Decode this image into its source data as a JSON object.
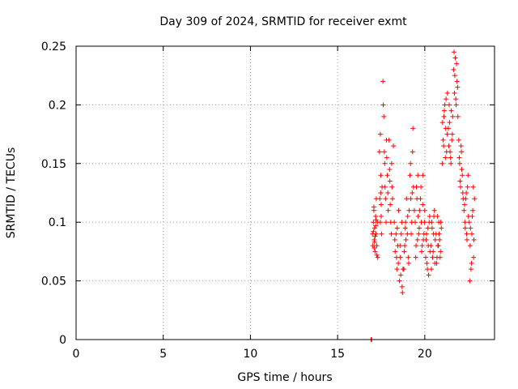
{
  "chart_data": {
    "type": "scatter",
    "title": "Day 309 of 2024, SRMTID for receiver exmt",
    "xlabel": "GPS time / hours",
    "ylabel": "SRMTID / TECUs",
    "xlim": [
      0,
      24
    ],
    "ylim": [
      0,
      0.25
    ],
    "xticks": [
      0,
      5,
      10,
      15,
      20
    ],
    "xtick_labels": [
      "0",
      "5",
      "10",
      "15",
      "20"
    ],
    "yticks": [
      0,
      0.05,
      0.1,
      0.15,
      0.2,
      0.25
    ],
    "ytick_labels": [
      "0",
      "0.05",
      "0.1",
      "0.15",
      "0.2",
      "0.25"
    ],
    "grid": true,
    "marker": "plus",
    "color": "#ff0000",
    "series": [
      {
        "name": "SRMTID",
        "x": [
          16.92,
          16.95,
          17.0,
          17.02,
          17.05,
          17.08,
          17.1,
          17.12,
          17.15,
          17.18,
          17.2,
          17.22,
          17.25,
          17.28,
          17.3,
          17.05,
          17.1,
          17.15,
          17.2,
          17.25,
          17.12,
          17.18,
          17.08,
          17.4,
          17.42,
          17.45,
          17.48,
          17.5,
          17.52,
          17.55,
          17.45,
          17.5,
          17.47,
          17.6,
          17.65,
          17.7,
          17.75,
          17.8,
          17.85,
          17.9,
          17.62,
          17.68,
          17.72,
          17.78,
          17.82,
          17.88,
          17.95,
          18.0,
          18.05,
          18.1,
          18.15,
          18.2,
          17.98,
          18.02,
          18.08,
          18.12,
          18.25,
          18.3,
          18.35,
          18.4,
          18.45,
          18.5,
          18.28,
          18.38,
          18.42,
          18.48,
          18.55,
          18.6,
          18.65,
          18.7,
          18.75,
          18.58,
          18.62,
          18.68,
          18.72,
          18.8,
          18.85,
          18.9,
          18.95,
          19.0,
          19.05,
          19.1,
          18.82,
          18.88,
          18.92,
          19.02,
          19.08,
          19.15,
          19.2,
          19.25,
          19.3,
          19.35,
          19.4,
          19.18,
          19.22,
          19.28,
          19.32,
          19.45,
          19.5,
          19.55,
          19.6,
          19.65,
          19.7,
          19.48,
          19.52,
          19.58,
          19.62,
          19.68,
          19.75,
          19.8,
          19.85,
          19.9,
          19.95,
          20.0,
          19.78,
          19.82,
          19.88,
          19.92,
          19.98,
          20.05,
          20.1,
          20.15,
          20.2,
          20.25,
          20.3,
          20.08,
          20.12,
          20.18,
          20.22,
          20.28,
          20.35,
          20.4,
          20.45,
          20.5,
          20.55,
          20.6,
          20.38,
          20.42,
          20.48,
          20.52,
          20.58,
          20.65,
          20.7,
          20.75,
          20.8,
          20.85,
          20.9,
          20.95,
          20.68,
          20.72,
          20.78,
          20.82,
          20.88,
          20.92,
          21.0,
          21.05,
          21.1,
          21.15,
          21.2,
          21.25,
          21.3,
          21.02,
          21.08,
          21.12,
          21.18,
          21.22,
          21.28,
          21.35,
          21.4,
          21.45,
          21.5,
          21.55,
          21.6,
          21.38,
          21.42,
          21.48,
          21.52,
          21.58,
          21.65,
          21.7,
          21.75,
          21.8,
          21.85,
          21.9,
          21.68,
          21.72,
          21.78,
          21.82,
          21.88,
          21.95,
          22.0,
          22.05,
          22.1,
          22.15,
          22.2,
          21.98,
          22.02,
          22.08,
          22.12,
          22.18,
          22.25,
          22.3,
          22.35,
          22.4,
          22.45,
          22.5,
          22.28,
          22.32,
          22.38,
          22.42,
          22.48,
          22.55,
          22.6,
          22.65,
          22.7,
          22.75,
          22.8,
          22.85,
          22.58,
          22.62,
          22.68,
          22.72,
          22.78,
          22.82
        ],
        "y": [
          0.0,
          0.0,
          0.09,
          0.08,
          0.1,
          0.11,
          0.085,
          0.095,
          0.075,
          0.105,
          0.09,
          0.12,
          0.08,
          0.1,
          0.07,
          0.092,
          0.078,
          0.088,
          0.102,
          0.072,
          0.083,
          0.097,
          0.113,
          0.16,
          0.12,
          0.1,
          0.14,
          0.115,
          0.09,
          0.13,
          0.175,
          0.105,
          0.125,
          0.22,
          0.19,
          0.15,
          0.12,
          0.17,
          0.14,
          0.11,
          0.2,
          0.16,
          0.13,
          0.1,
          0.155,
          0.125,
          0.17,
          0.135,
          0.1,
          0.15,
          0.12,
          0.165,
          0.145,
          0.115,
          0.09,
          0.13,
          0.1,
          0.075,
          0.09,
          0.06,
          0.08,
          0.11,
          0.085,
          0.07,
          0.095,
          0.065,
          0.05,
          0.07,
          0.09,
          0.045,
          0.06,
          0.08,
          0.055,
          0.1,
          0.04,
          0.06,
          0.08,
          0.1,
          0.12,
          0.09,
          0.07,
          0.11,
          0.075,
          0.095,
          0.085,
          0.105,
          0.065,
          0.14,
          0.12,
          0.1,
          0.16,
          0.13,
          0.11,
          0.15,
          0.09,
          0.125,
          0.18,
          0.1,
          0.08,
          0.12,
          0.14,
          0.09,
          0.11,
          0.07,
          0.13,
          0.085,
          0.105,
          0.095,
          0.12,
          0.1,
          0.08,
          0.14,
          0.09,
          0.11,
          0.13,
          0.075,
          0.115,
          0.085,
          0.1,
          0.07,
          0.09,
          0.06,
          0.08,
          0.1,
          0.075,
          0.085,
          0.065,
          0.095,
          0.055,
          0.105,
          0.08,
          0.1,
          0.07,
          0.09,
          0.11,
          0.085,
          0.06,
          0.095,
          0.075,
          0.105,
          0.065,
          0.09,
          0.07,
          0.08,
          0.1,
          0.085,
          0.075,
          0.095,
          0.065,
          0.105,
          0.08,
          0.09,
          0.07,
          0.1,
          0.15,
          0.17,
          0.19,
          0.2,
          0.18,
          0.16,
          0.21,
          0.185,
          0.165,
          0.195,
          0.155,
          0.205,
          0.175,
          0.18,
          0.2,
          0.16,
          0.15,
          0.17,
          0.19,
          0.165,
          0.185,
          0.155,
          0.195,
          0.175,
          0.23,
          0.21,
          0.24,
          0.2,
          0.22,
          0.19,
          0.245,
          0.225,
          0.205,
          0.235,
          0.215,
          0.17,
          0.15,
          0.13,
          0.16,
          0.14,
          0.12,
          0.155,
          0.135,
          0.165,
          0.145,
          0.125,
          0.11,
          0.1,
          0.12,
          0.09,
          0.13,
          0.105,
          0.115,
          0.095,
          0.125,
          0.085,
          0.14,
          0.1,
          0.08,
          0.06,
          0.09,
          0.11,
          0.07,
          0.12,
          0.05,
          0.095,
          0.065,
          0.105,
          0.13,
          0.085
        ]
      }
    ]
  }
}
